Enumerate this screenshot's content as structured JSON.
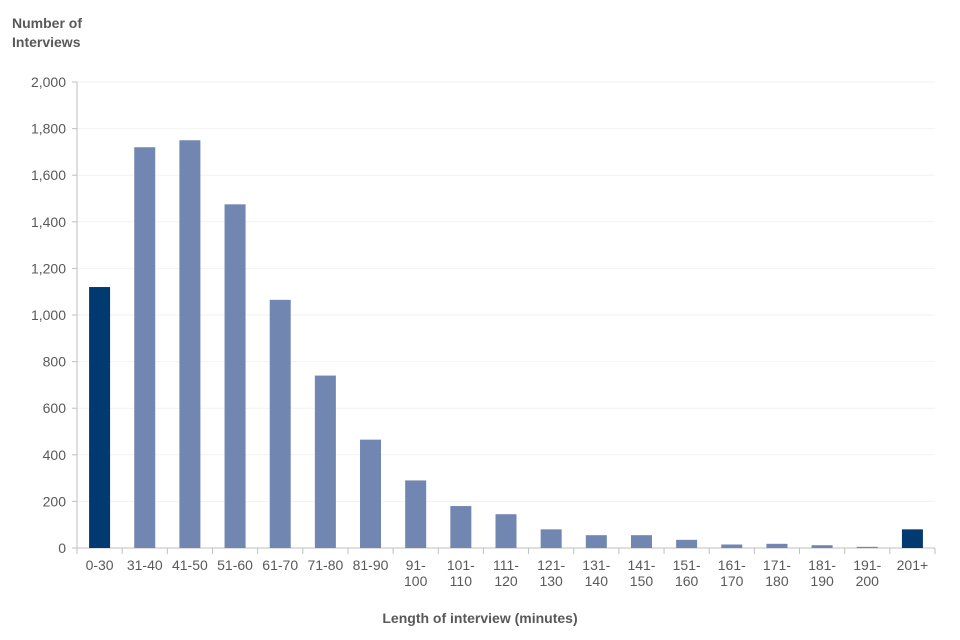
{
  "chart_data": {
    "type": "bar",
    "ylabel": "Number of Interviews",
    "xlabel": "Length of interview (minutes)",
    "ylim": [
      0,
      2000
    ],
    "yticks": [
      "0",
      "200",
      "400",
      "600",
      "800",
      "1,000",
      "1,200",
      "1,400",
      "1,600",
      "1,800",
      "2,000"
    ],
    "grid": true,
    "categories": [
      [
        "0-30"
      ],
      [
        "31-40"
      ],
      [
        "41-50"
      ],
      [
        "51-60"
      ],
      [
        "61-70"
      ],
      [
        "71-80"
      ],
      [
        "81-90"
      ],
      [
        "91-",
        "100"
      ],
      [
        "101-",
        "110"
      ],
      [
        "111-",
        "120"
      ],
      [
        "121-",
        "130"
      ],
      [
        "131-",
        "140"
      ],
      [
        "141-",
        "150"
      ],
      [
        "151-",
        "160"
      ],
      [
        "161-",
        "170"
      ],
      [
        "171-",
        "180"
      ],
      [
        "181-",
        "190"
      ],
      [
        "191-",
        "200"
      ],
      [
        "201+"
      ]
    ],
    "values": [
      1120,
      1720,
      1750,
      1475,
      1065,
      740,
      465,
      290,
      180,
      145,
      80,
      55,
      55,
      35,
      15,
      18,
      12,
      5,
      80
    ],
    "colors": {
      "highlight": "#003a70",
      "normal": "#7186b0",
      "axis": "#bfbfbf",
      "grid": "#f2f2f2"
    },
    "highlight_indices": [
      0,
      18
    ]
  }
}
